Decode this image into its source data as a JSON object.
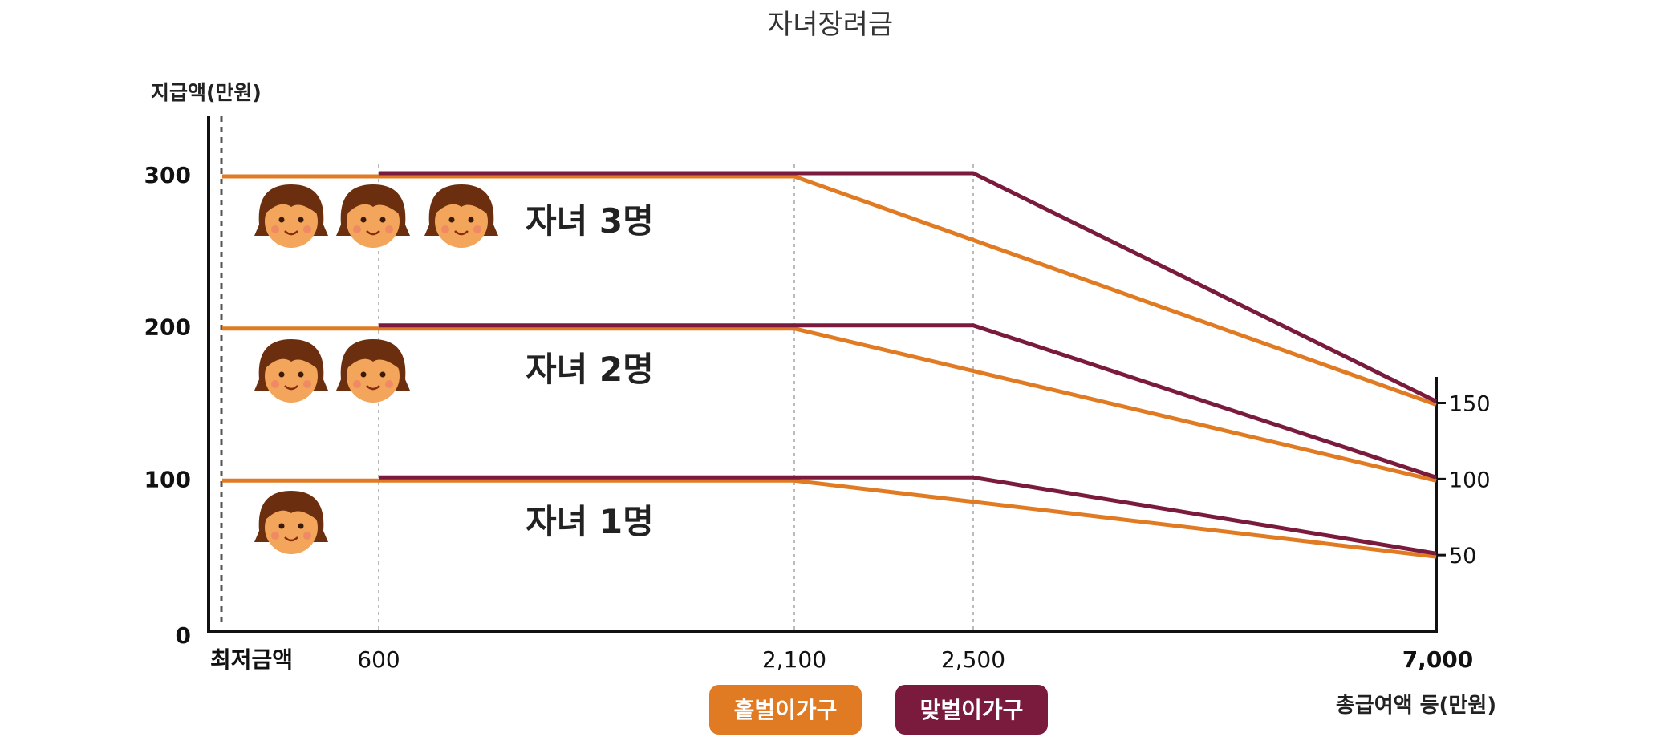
{
  "chart_data": {
    "type": "line",
    "title": "자녀장려금",
    "ylabel": "지급액(만원)",
    "xlabel": "총급여액 등(만원)",
    "ylim": [
      0,
      330
    ],
    "y_ticks": [
      "0",
      "100",
      "200",
      "300"
    ],
    "x_ticks": [
      "최저금액",
      "600",
      "2,100",
      "2,500",
      "7,000"
    ],
    "right_ticks": [
      "50",
      "100",
      "150"
    ],
    "legend": [
      {
        "name": "홑벌이가구",
        "color": "#E07B24"
      },
      {
        "name": "맞벌이가구",
        "color": "#7A1B3D"
      }
    ],
    "groups": [
      {
        "label": "자녀 3명",
        "children": 3,
        "series": [
          {
            "name": "홑벌이가구",
            "x": [
              0,
              2100,
              7000
            ],
            "y": [
              300,
              300,
              150
            ]
          },
          {
            "name": "맞벌이가구",
            "x": [
              600,
              2500,
              7000
            ],
            "y": [
              300,
              300,
              150
            ]
          }
        ]
      },
      {
        "label": "자녀 2명",
        "children": 2,
        "series": [
          {
            "name": "홑벌이가구",
            "x": [
              0,
              2100,
              7000
            ],
            "y": [
              200,
              200,
              100
            ]
          },
          {
            "name": "맞벌이가구",
            "x": [
              600,
              2500,
              7000
            ],
            "y": [
              200,
              200,
              100
            ]
          }
        ]
      },
      {
        "label": "자녀 1명",
        "children": 1,
        "series": [
          {
            "name": "홑벌이가구",
            "x": [
              0,
              2100,
              7000
            ],
            "y": [
              100,
              100,
              50
            ]
          },
          {
            "name": "맞벌이가구",
            "x": [
              600,
              2500,
              7000
            ],
            "y": [
              100,
              100,
              50
            ]
          }
        ]
      }
    ]
  }
}
